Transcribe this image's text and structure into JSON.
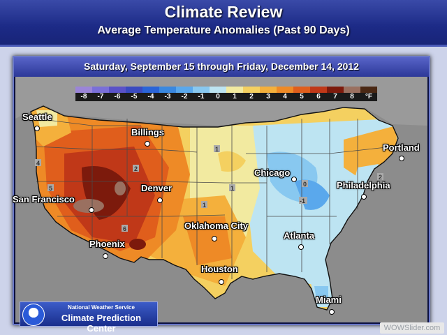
{
  "header": {
    "title": "Climate Review",
    "subtitle": "Average Temperature Anomalies (Past 90 Days)"
  },
  "date_range": "Saturday, September 15 through Friday, December 14, 2012",
  "legend": {
    "values": [
      "-8",
      "-7",
      "-6",
      "-5",
      "-4",
      "-3",
      "-2",
      "-1",
      "0",
      "1",
      "2",
      "3",
      "4",
      "5",
      "6",
      "7",
      "8"
    ],
    "unit": "°F",
    "colors": [
      "#9b85d8",
      "#7a6fd8",
      "#5a52c8",
      "#3a4ac0",
      "#2a64d8",
      "#3a88e0",
      "#5aa8ec",
      "#88c8f0",
      "#bde4f2",
      "#f2eaa0",
      "#f4d060",
      "#f4b03c",
      "#ee8a26",
      "#e05e1c",
      "#c03818",
      "#7c1a0c",
      "#9a7060",
      "#4a2814"
    ]
  },
  "cities": [
    {
      "name": "Seattle"
    },
    {
      "name": "Billings"
    },
    {
      "name": "Portland"
    },
    {
      "name": "San Francisco"
    },
    {
      "name": "Denver"
    },
    {
      "name": "Chicago"
    },
    {
      "name": "Philadelphia"
    },
    {
      "name": "Oklahoma City"
    },
    {
      "name": "Atlanta"
    },
    {
      "name": "Phoenix"
    },
    {
      "name": "Houston"
    },
    {
      "name": "Miami"
    }
  ],
  "contour_labels": [
    "4",
    "5",
    "2",
    "1",
    "1",
    "0",
    "-1",
    "1",
    "2",
    "6"
  ],
  "branding": {
    "agency": "National Weather Service",
    "center": "Climate Prediction Center",
    "watermark": "WOWSlider.com"
  }
}
